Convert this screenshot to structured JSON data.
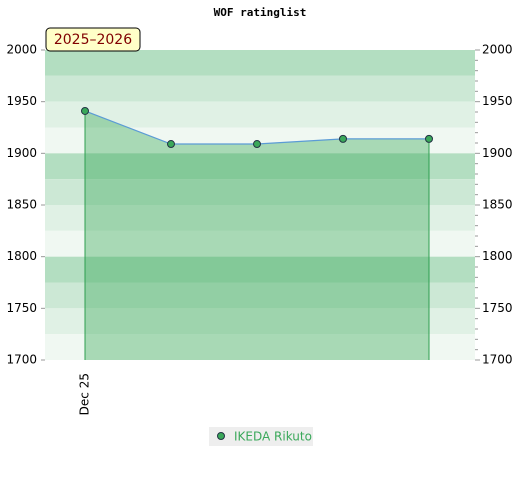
{
  "chart_data": {
    "type": "line",
    "title": "WOF ratinglist",
    "badge": "2025–2026",
    "categories": [
      "Dec 25",
      null,
      null,
      null,
      null
    ],
    "series": [
      {
        "name": "IKEDA Rikuto",
        "color": "#5b9bd5",
        "marker_color": "#3aa85a",
        "values": [
          1941,
          1909,
          1909,
          1914,
          1914
        ]
      }
    ],
    "ylim": [
      1700,
      2000
    ],
    "yticks": [
      1700,
      1750,
      1800,
      1850,
      1900,
      1950,
      2000
    ],
    "y2lim": [
      1700,
      2000
    ],
    "y2ticks": [
      1700,
      1750,
      1800,
      1850,
      1900,
      1950,
      2000
    ],
    "area": true,
    "legend": "bottom"
  }
}
